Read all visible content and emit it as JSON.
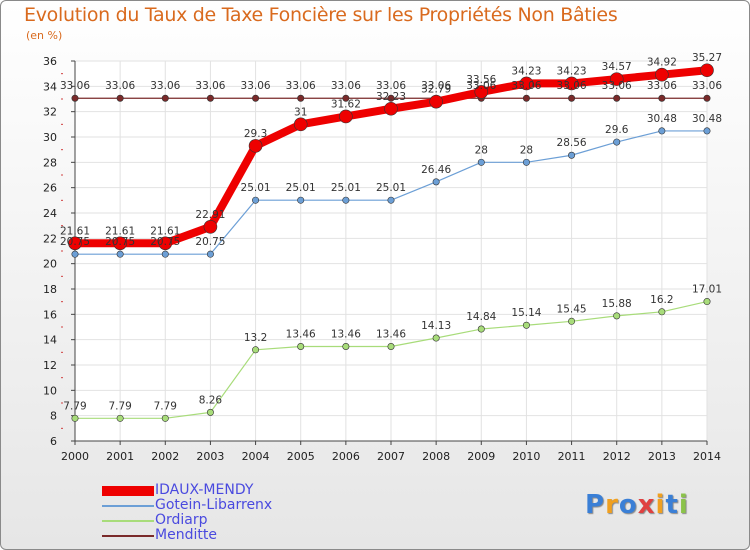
{
  "title": "Evolution du Taux de Taxe Foncière sur les Propriétés Non Bâties",
  "unit": "(en %)",
  "logo": {
    "text": "Proxiti",
    "colors": [
      "#3a7fd6",
      "#f0a020",
      "#3a7fd6",
      "#e04040",
      "#f0a020",
      "#3a7fd6",
      "#8bc34a"
    ]
  },
  "chart_data": {
    "type": "line",
    "x": [
      "2000",
      "2001",
      "2002",
      "2003",
      "2004",
      "2005",
      "2006",
      "2007",
      "2008",
      "2009",
      "2010",
      "2011",
      "2012",
      "2013",
      "2014"
    ],
    "ylim": [
      6,
      36
    ],
    "yticks": [
      "6",
      "8",
      "10",
      "12",
      "14",
      "16",
      "18",
      "20",
      "22",
      "24",
      "26",
      "28",
      "30",
      "32",
      "34",
      "36"
    ],
    "grid": true,
    "legend_position": "bottom-left",
    "series": [
      {
        "name": "IDAUX-MENDY",
        "color": "#ee0000",
        "values": [
          21.61,
          21.61,
          21.61,
          22.91,
          29.3,
          31,
          31.62,
          32.23,
          32.79,
          33.56,
          34.23,
          34.23,
          34.57,
          34.92,
          35.27
        ],
        "labels": [
          "21.61",
          "21.61",
          "21.61",
          "22.91",
          "29.3",
          "31",
          "31.62",
          "32.23",
          "32.79",
          "33.56",
          "34.23",
          "34.23",
          "34.57",
          "34.92",
          "35.27"
        ]
      },
      {
        "name": "Gotein-Libarrenx",
        "color": "#6c9fd6",
        "values": [
          20.75,
          20.75,
          20.75,
          20.75,
          25.01,
          25.01,
          25.01,
          25.01,
          26.46,
          28,
          28,
          28.56,
          29.6,
          30.48,
          30.48
        ],
        "labels": [
          "20.75",
          "20.75",
          "20.75",
          "20.75",
          "25.01",
          "25.01",
          "25.01",
          "25.01",
          "26.46",
          "28",
          "28",
          "28.56",
          "29.6",
          "30.48",
          "30.48"
        ]
      },
      {
        "name": "Ordiarp",
        "color": "#a8dc7a",
        "values": [
          7.79,
          7.79,
          7.79,
          8.26,
          13.2,
          13.46,
          13.46,
          13.46,
          14.13,
          14.84,
          15.14,
          15.45,
          15.88,
          16.2,
          17.01
        ],
        "labels": [
          "7.79",
          "7.79",
          "7.79",
          "8.26",
          "13.2",
          "13.46",
          "13.46",
          "13.46",
          "14.13",
          "14.84",
          "15.14",
          "15.45",
          "15.88",
          "16.2",
          "17.01"
        ]
      },
      {
        "name": "Menditte",
        "color": "#7a2a2a",
        "values": [
          33.06,
          33.06,
          33.06,
          33.06,
          33.06,
          33.06,
          33.06,
          33.06,
          33.06,
          33.06,
          33.06,
          33.06,
          33.06,
          33.06,
          33.06
        ],
        "labels": [
          "33.06",
          "33.06",
          "33.06",
          "33.06",
          "33.06",
          "33.06",
          "33.06",
          "33.06",
          "33.06",
          "33.06",
          "33.06",
          "33.06",
          "33.06",
          "33.06",
          "33.06"
        ]
      }
    ]
  }
}
